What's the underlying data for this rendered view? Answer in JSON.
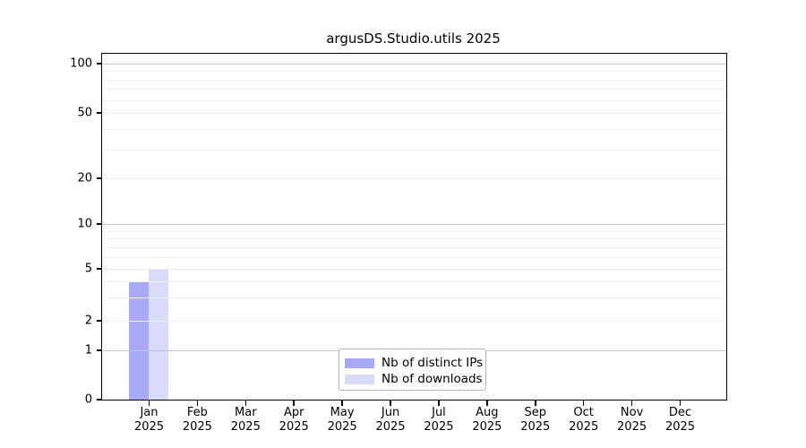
{
  "chart_data": {
    "type": "bar",
    "title": "argusDS.Studio.utils 2025",
    "x_categories": [
      {
        "month": "Jan",
        "year": "2025"
      },
      {
        "month": "Feb",
        "year": "2025"
      },
      {
        "month": "Mar",
        "year": "2025"
      },
      {
        "month": "Apr",
        "year": "2025"
      },
      {
        "month": "May",
        "year": "2025"
      },
      {
        "month": "Jun",
        "year": "2025"
      },
      {
        "month": "Jul",
        "year": "2025"
      },
      {
        "month": "Aug",
        "year": "2025"
      },
      {
        "month": "Sep",
        "year": "2025"
      },
      {
        "month": "Oct",
        "year": "2025"
      },
      {
        "month": "Nov",
        "year": "2025"
      },
      {
        "month": "Dec",
        "year": "2025"
      }
    ],
    "series": [
      {
        "name": "Nb of distinct IPs",
        "color": "#a9a9f7",
        "values": [
          4,
          0,
          0,
          0,
          0,
          0,
          0,
          0,
          0,
          0,
          0,
          0
        ]
      },
      {
        "name": "Nb of downloads",
        "color": "#dadafa",
        "values": [
          5,
          0,
          0,
          0,
          0,
          0,
          0,
          0,
          0,
          0,
          0,
          0
        ]
      }
    ],
    "y_axis": {
      "scale": "symlog",
      "ticks": [
        0,
        1,
        2,
        5,
        10,
        20,
        50,
        100
      ],
      "minor_ticks": [
        3,
        4,
        6,
        7,
        8,
        9,
        30,
        40,
        60,
        70,
        80,
        90
      ]
    },
    "grid": {
      "decade_values": [
        1,
        10,
        100
      ],
      "decade_color": "#c6c6c6",
      "major_color": "#ededed",
      "minor_color": "#f2f2f2"
    },
    "legend": {
      "position": "lower center"
    },
    "xlabel": "",
    "ylabel": ""
  }
}
